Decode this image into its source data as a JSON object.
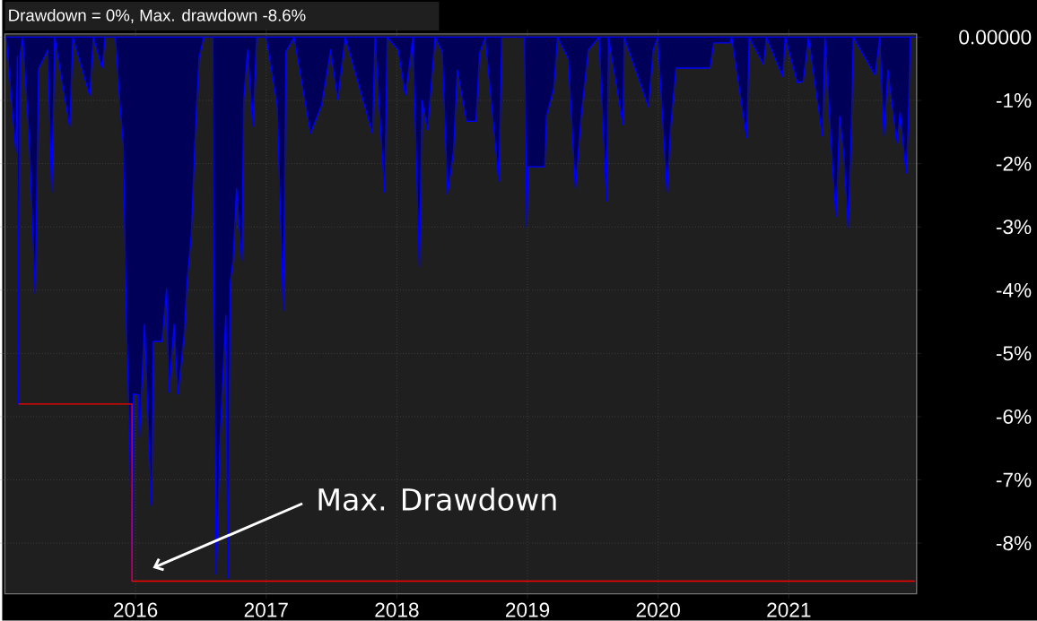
{
  "chart_data": {
    "type": "area",
    "title": "Drawdown = 0%, Max. drawdown -8.6%",
    "series": [
      {
        "color": "#0000ff",
        "x": [
          "2015-01-05",
          "2015-02-01",
          "2015-02-05",
          "2015-02-08",
          "2015-02-12",
          "2015-02-20",
          "2015-03-10",
          "2015-03-27",
          "2015-04-05",
          "2015-05-01",
          "2015-05-12",
          "2015-05-20",
          "2015-07-01",
          "2015-07-10",
          "2015-08-26",
          "2015-09-05",
          "2015-09-30",
          "2015-10-08",
          "2015-11-06",
          "2015-11-18",
          "2015-11-28",
          "2015-12-07",
          "2015-12-14",
          "2015-12-19",
          "2015-12-22",
          "2015-12-26",
          "2016-01-10",
          "2016-01-12",
          "2016-01-26",
          "2016-02-15",
          "2016-02-20",
          "2016-03-15",
          "2016-03-28",
          "2016-04-04",
          "2016-04-18",
          "2016-04-29",
          "2016-05-17",
          "2016-05-24",
          "2016-06-05",
          "2016-06-15",
          "2016-06-20",
          "2016-06-27",
          "2016-07-10",
          "2016-08-05",
          "2016-08-07",
          "2016-08-12",
          "2016-08-14",
          "2016-08-25",
          "2016-09-10",
          "2016-09-16",
          "2016-09-22",
          "2016-09-30",
          "2016-10-10",
          "2016-10-25",
          "2016-10-30",
          "2016-11-10",
          "2016-11-25",
          "2016-12-05",
          "2017-01-01",
          "2017-02-01",
          "2017-02-18",
          "2017-02-25",
          "2017-03-20",
          "2017-05-05",
          "2017-06-05",
          "2017-06-30",
          "2017-07-20",
          "2017-08-10",
          "2017-10-25",
          "2017-11-01",
          "2017-11-28",
          "2017-12-05",
          "2018-01-05",
          "2018-01-25",
          "2018-02-15",
          "2018-03-05",
          "2018-03-12",
          "2018-03-28",
          "2018-04-18",
          "2018-05-08",
          "2018-05-23",
          "2018-06-08",
          "2018-06-19",
          "2018-07-15",
          "2018-08-10",
          "2018-08-20",
          "2018-09-05",
          "2018-10-13",
          "2018-10-21",
          "2018-12-24",
          "2018-12-30",
          "2019-01-03",
          "2019-02-18",
          "2019-02-23",
          "2019-03-15",
          "2019-03-26",
          "2019-04-25",
          "2019-05-15",
          "2019-05-31",
          "2019-06-20",
          "2019-07-20",
          "2019-08-10",
          "2019-08-15",
          "2019-09-25",
          "2019-09-28",
          "2019-12-05",
          "2019-12-18",
          "2019-12-31",
          "2020-01-26",
          "2020-02-05",
          "2020-02-20",
          "2020-05-25",
          "2020-06-05",
          "2020-07-20",
          "2020-07-25",
          "2020-09-05",
          "2020-09-12",
          "2020-10-22",
          "2020-10-30",
          "2020-12-15",
          "2020-12-22",
          "2021-01-25",
          "2021-02-10",
          "2021-02-25",
          "2021-04-05",
          "2021-04-12",
          "2021-05-05",
          "2021-05-13",
          "2021-05-23",
          "2021-06-04",
          "2021-06-16",
          "2021-06-25",
          "2021-06-30",
          "2021-08-30",
          "2021-09-12",
          "2021-09-24",
          "2021-10-05",
          "2021-10-30",
          "2021-11-08",
          "2021-11-25",
          "2021-12-01",
          "2021-12-06",
          "2021-12-20"
        ],
        "values": [
          0,
          -1.82,
          -0.3,
          -5.8,
          -0.3,
          0,
          -1.6,
          -4.06,
          -0.5,
          -0.2,
          -2.45,
          0,
          -1.41,
          0,
          -0.92,
          0,
          -0.49,
          0,
          0,
          -1.01,
          -1.7,
          -4.64,
          -5.96,
          -7.34,
          -8.6,
          -5.64,
          -5.66,
          -6.33,
          -4.54,
          -7.4,
          -4.81,
          -4.81,
          -3.98,
          -5.61,
          -4.54,
          -5.64,
          -4.66,
          -3.89,
          -3.14,
          -1.7,
          -1.09,
          -0.33,
          0,
          0,
          -3.48,
          -6.65,
          -8.49,
          -6.3,
          -4.4,
          -8.55,
          -3.89,
          -3.54,
          -2.39,
          -3.54,
          -1.0,
          -0.2,
          -1.41,
          0,
          0,
          -1.07,
          -4.32,
          -0.23,
          0,
          -1.52,
          -1.07,
          -0.2,
          -0.98,
          0,
          -1.52,
          0,
          -2.45,
          0,
          -0.2,
          -0.92,
          0,
          -3.63,
          -1.0,
          -1.46,
          0,
          -0.23,
          -2.48,
          -1.82,
          -0.52,
          -1.33,
          -1.33,
          -0.26,
          0,
          -2.28,
          0,
          0,
          -3.0,
          -2.05,
          -2.05,
          -1.24,
          -0.83,
          0,
          -0.34,
          -2.39,
          -1.24,
          -0.2,
          0,
          -2.59,
          0,
          -1.38,
          0,
          -1.1,
          -0.2,
          0,
          -2.45,
          -1.41,
          -0.49,
          -0.49,
          -0.09,
          -0.09,
          0,
          -1.59,
          0,
          -0.43,
          0,
          -0.62,
          0,
          -0.72,
          -0.7,
          0,
          -1.56,
          0,
          -2.18,
          -2.84,
          -1.25,
          -1.87,
          -3.02,
          -1.36,
          0,
          -0.6,
          0,
          -1.56,
          -0.52,
          -1.68,
          -1.19,
          -2.15,
          -1.33,
          0,
          0
        ]
      },
      {
        "type": "step",
        "color": "#ff0000",
        "x": [
          "2015-02-08",
          "2015-12-22",
          "2021-12-20"
        ],
        "values": [
          -5.8,
          -8.6,
          -8.6
        ]
      }
    ],
    "xlim": [
      "2015-01-01",
      "2021-12-24"
    ],
    "xticks": [
      "2016",
      "2017",
      "2018",
      "2019",
      "2020",
      "2021"
    ],
    "ylim": [
      -8.8,
      0.05
    ],
    "yticks": [
      {
        "value": 0,
        "label": "0.00000"
      },
      {
        "value": -1,
        "label": "-1%"
      },
      {
        "value": -2,
        "label": "-2%"
      },
      {
        "value": -3,
        "label": "-3%"
      },
      {
        "value": -4,
        "label": "-4%"
      },
      {
        "value": -5,
        "label": "-5%"
      },
      {
        "value": -6,
        "label": "-6%"
      },
      {
        "value": -7,
        "label": "-7%"
      },
      {
        "value": -8,
        "label": "-8%"
      }
    ],
    "grid": true,
    "annotations": [
      "Max. Drawdown"
    ]
  }
}
